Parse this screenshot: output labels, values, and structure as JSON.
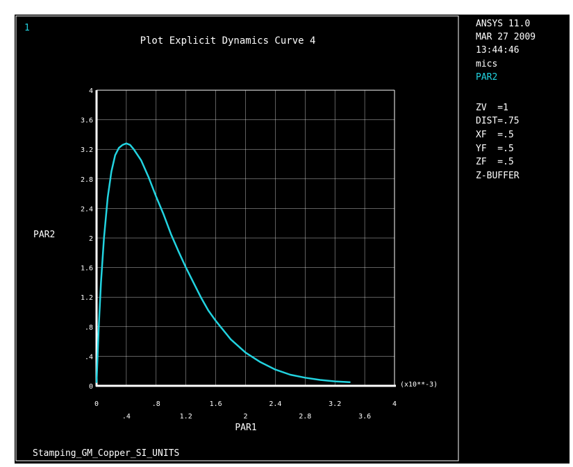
{
  "window": {
    "number": "1",
    "title": "Plot Explicit Dynamics Curve 4",
    "footer": "Stamping_GM_Copper_SI_UNITS"
  },
  "info_panel": {
    "lines": [
      "ANSYS 11.0",
      "MAR 27 2009",
      "13:44:46",
      "mics"
    ],
    "curve_label": "PAR2",
    "view_lines": [
      "ZV  =1",
      "DIST=.75",
      "XF  =.5",
      "YF  =.5",
      "ZF  =.5",
      "Z-BUFFER"
    ]
  },
  "colors": {
    "background": "#000000",
    "frame": "#ffffff",
    "curve": "#22d3e0",
    "accent": "#22d3e0",
    "text": "#ffffff",
    "grid": "#ffffff"
  },
  "chart_data": {
    "type": "line",
    "title": "Plot Explicit Dynamics Curve 4",
    "xlabel": "PAR1",
    "ylabel": "PAR2",
    "x_multiplier_label": "(x10**-3)",
    "xlim": [
      0,
      4
    ],
    "ylim": [
      0,
      4
    ],
    "x_ticks_upper": [
      "0",
      ".8",
      "1.6",
      "2.4",
      "3.2",
      "4"
    ],
    "x_ticks_lower": [
      ".4",
      "1.2",
      "2",
      "2.8",
      "3.6"
    ],
    "y_ticks": [
      "0",
      ".4",
      ".8",
      "1.2",
      "1.6",
      "2",
      "2.4",
      "2.8",
      "3.2",
      "3.6",
      "4"
    ],
    "grid": true,
    "legend": "none",
    "series": [
      {
        "name": "PAR2",
        "x": [
          0,
          0.03,
          0.06,
          0.1,
          0.15,
          0.2,
          0.25,
          0.3,
          0.35,
          0.4,
          0.45,
          0.5,
          0.6,
          0.7,
          0.8,
          0.9,
          1.0,
          1.1,
          1.2,
          1.3,
          1.4,
          1.5,
          1.6,
          1.8,
          2.0,
          2.2,
          2.4,
          2.6,
          2.8,
          3.0,
          3.2,
          3.4
        ],
        "y": [
          0.05,
          0.8,
          1.4,
          2.0,
          2.55,
          2.9,
          3.12,
          3.22,
          3.26,
          3.28,
          3.26,
          3.2,
          3.05,
          2.82,
          2.56,
          2.32,
          2.05,
          1.82,
          1.6,
          1.4,
          1.2,
          1.02,
          0.88,
          0.63,
          0.45,
          0.32,
          0.22,
          0.15,
          0.11,
          0.08,
          0.06,
          0.05
        ]
      }
    ]
  }
}
